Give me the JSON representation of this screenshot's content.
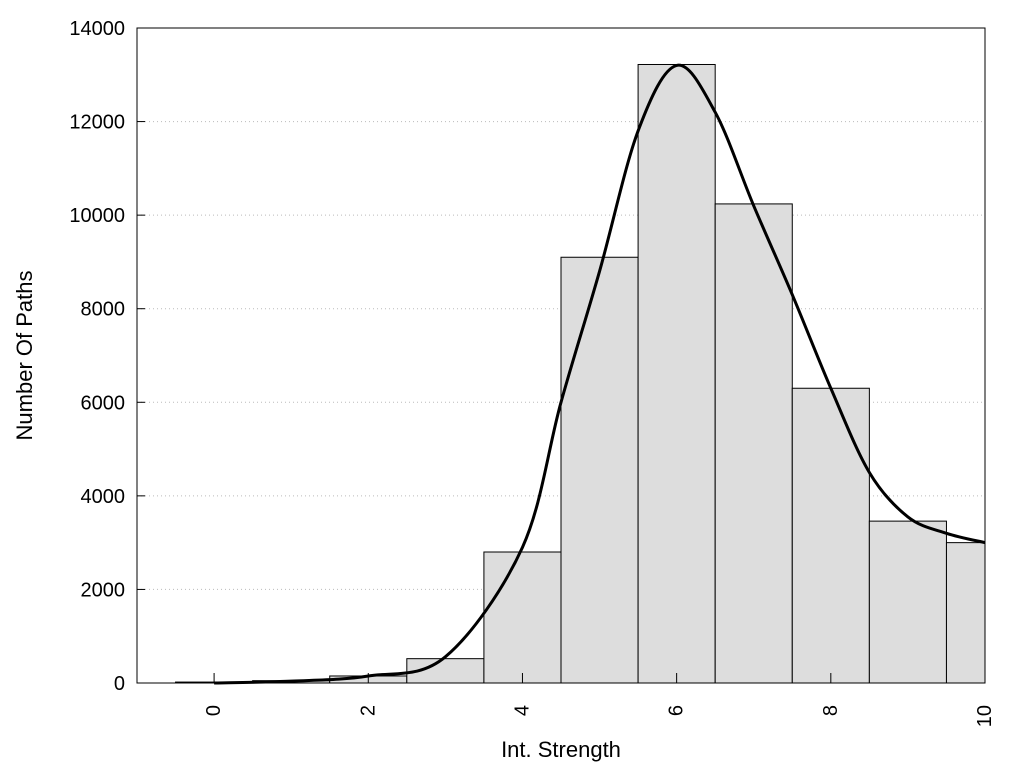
{
  "chart_data": {
    "type": "bar",
    "title": "",
    "xlabel": "Int. Strength",
    "ylabel": "Number Of Paths",
    "xlim": [
      -1,
      10
    ],
    "ylim": [
      0,
      14000
    ],
    "x_ticks": [
      0,
      2,
      4,
      6,
      8,
      10
    ],
    "y_ticks": [
      0,
      2000,
      4000,
      6000,
      8000,
      10000,
      12000,
      14000
    ],
    "x_tick_labels": [
      "0",
      "2",
      "4",
      "6",
      "8",
      "10"
    ],
    "y_tick_labels": [
      "0",
      "2000",
      "4000",
      "6000",
      "8000",
      "10000",
      "12000",
      "14000"
    ],
    "grid": "horizontal-dotted",
    "bar_color": "#dddddd",
    "curve_color": "#000000",
    "bars": [
      {
        "x": 0,
        "value": 20
      },
      {
        "x": 1,
        "value": 50
      },
      {
        "x": 2,
        "value": 150
      },
      {
        "x": 3,
        "value": 520
      },
      {
        "x": 4,
        "value": 2800
      },
      {
        "x": 5,
        "value": 9100
      },
      {
        "x": 6,
        "value": 13220
      },
      {
        "x": 7,
        "value": 10240
      },
      {
        "x": 8,
        "value": 6300
      },
      {
        "x": 9,
        "value": 3460
      },
      {
        "x": 10,
        "value": 3000
      }
    ],
    "curve": [
      {
        "x": 0,
        "y": 0
      },
      {
        "x": 1,
        "y": 40
      },
      {
        "x": 2,
        "y": 150
      },
      {
        "x": 3,
        "y": 560
      },
      {
        "x": 4,
        "y": 2900
      },
      {
        "x": 4.5,
        "y": 6000
      },
      {
        "x": 5,
        "y": 8800
      },
      {
        "x": 5.5,
        "y": 11800
      },
      {
        "x": 6,
        "y": 13200
      },
      {
        "x": 6.5,
        "y": 12200
      },
      {
        "x": 7,
        "y": 10200
      },
      {
        "x": 7.5,
        "y": 8300
      },
      {
        "x": 8,
        "y": 6300
      },
      {
        "x": 8.5,
        "y": 4500
      },
      {
        "x": 9,
        "y": 3550
      },
      {
        "x": 9.5,
        "y": 3200
      },
      {
        "x": 10,
        "y": 3000
      }
    ]
  }
}
